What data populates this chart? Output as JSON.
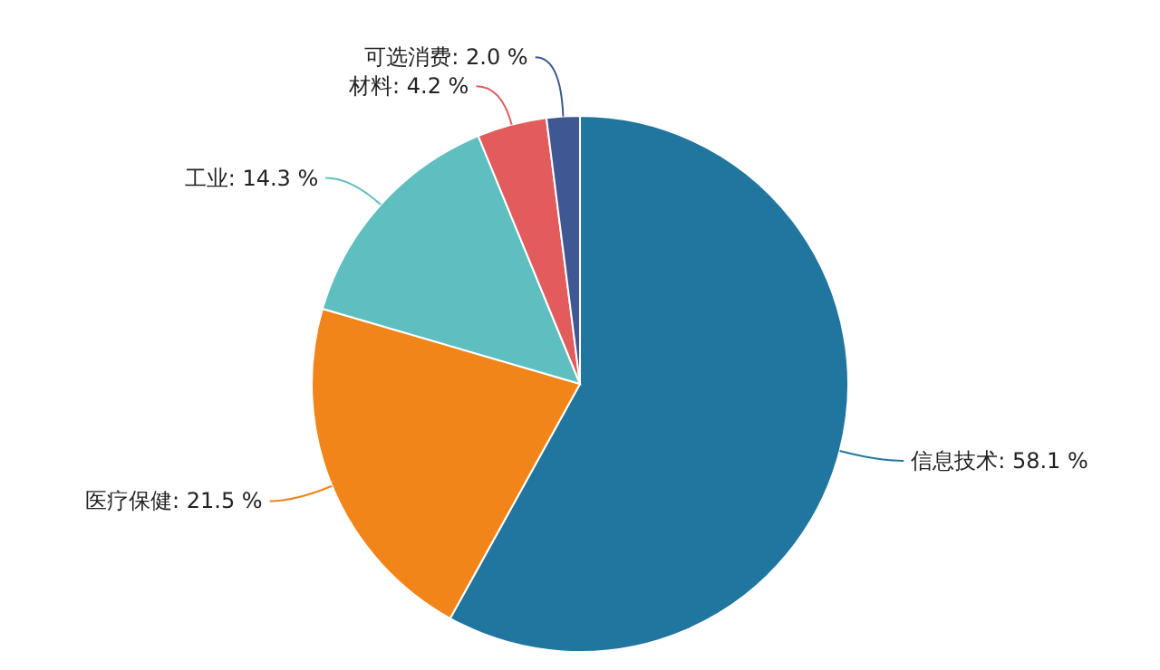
{
  "chart_data": {
    "type": "pie",
    "categories": [
      "信息技术",
      "医疗保健",
      "工业",
      "材料",
      "可选消费"
    ],
    "values": [
      58.1,
      21.5,
      14.3,
      4.2,
      2.0
    ],
    "value_labels": [
      "58.1 %",
      "21.5 %",
      "14.3 %",
      "4.2 %",
      "2.0 %"
    ],
    "colors": [
      "#21769f",
      "#f2851a",
      "#5fbfc0",
      "#e25c5c",
      "#3f5893"
    ]
  }
}
